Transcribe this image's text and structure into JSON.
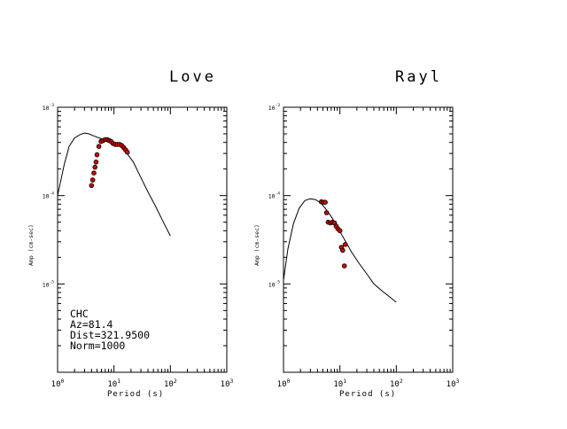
{
  "panels": [
    {
      "title": "Love",
      "xlabel": "Period (s)",
      "ylabel": "Amp (cm-sec)",
      "info_lines": [
        "CHC",
        "Az=81.4",
        "Dist=321.9500",
        "Norm=1000"
      ]
    },
    {
      "title": "Rayl",
      "xlabel": "Period (s)",
      "ylabel": "Amp (cm-sec)",
      "info_lines": []
    }
  ],
  "chart_data": [
    {
      "type": "scatter",
      "title": "Love",
      "xlabel": "Period (s)",
      "ylabel": "Amp (cm-sec)",
      "xscale": "log",
      "yscale": "log",
      "xlim": [
        1,
        1000
      ],
      "ylim": [
        1e-06,
        0.001
      ],
      "x_ticks": [
        "10^0",
        "10^1",
        "10^2",
        "10^3"
      ],
      "y_ticks": [
        "10^-3",
        "10^-4",
        "10^-5"
      ],
      "colors": {
        "curve": "#000000",
        "points": "#cc0000",
        "point_edge": "#000000"
      },
      "series": [
        {
          "kind": "line",
          "points": [
            [
              1.0,
              0.0001
            ],
            [
              1.3,
              0.00022
            ],
            [
              1.6,
              0.00036
            ],
            [
              2.0,
              0.00045
            ],
            [
              2.5,
              0.00049
            ],
            [
              3.0,
              0.00051
            ],
            [
              3.6,
              0.0005
            ],
            [
              4.5,
              0.00047
            ],
            [
              6.0,
              0.00044
            ],
            [
              8.0,
              0.00042
            ],
            [
              10.0,
              0.0004
            ],
            [
              13.0,
              0.00036
            ],
            [
              17.0,
              0.0003
            ],
            [
              22.0,
              0.00024
            ],
            [
              30.0,
              0.00016
            ],
            [
              40.0,
              0.00011
            ],
            [
              55.0,
              7.5e-05
            ],
            [
              75.0,
              5e-05
            ],
            [
              100.0,
              3.5e-05
            ]
          ]
        },
        {
          "kind": "scatter",
          "points": [
            [
              4.0,
              0.00013
            ],
            [
              4.2,
              0.00015
            ],
            [
              4.4,
              0.00018
            ],
            [
              4.6,
              0.00021
            ],
            [
              4.8,
              0.00024
            ],
            [
              5.0,
              0.00029
            ],
            [
              5.4,
              0.00036
            ],
            [
              5.9,
              0.00041
            ],
            [
              6.4,
              0.00042
            ],
            [
              7.0,
              0.00043
            ],
            [
              7.6,
              0.00043
            ],
            [
              8.2,
              0.00042
            ],
            [
              8.9,
              0.00041
            ],
            [
              9.6,
              0.00039
            ],
            [
              10.5,
              0.00038
            ],
            [
              11.5,
              0.00038
            ],
            [
              12.5,
              0.00038
            ],
            [
              13.6,
              0.00037
            ],
            [
              14.8,
              0.00035
            ],
            [
              16.0,
              0.00033
            ],
            [
              17.2,
              0.00031
            ]
          ]
        }
      ]
    },
    {
      "type": "scatter",
      "title": "Rayl",
      "xlabel": "Period (s)",
      "ylabel": "Amp (cm-sec)",
      "xscale": "log",
      "yscale": "log",
      "xlim": [
        1,
        1000
      ],
      "ylim": [
        1e-06,
        0.001
      ],
      "x_ticks": [
        "10^0",
        "10^1",
        "10^2",
        "10^3"
      ],
      "y_ticks": [
        "10^-3",
        "10^-4",
        "10^-5"
      ],
      "colors": {
        "curve": "#000000",
        "points": "#cc0000",
        "point_edge": "#000000"
      },
      "series": [
        {
          "kind": "line",
          "points": [
            [
              1.0,
              1.1e-05
            ],
            [
              1.2,
              2.5e-05
            ],
            [
              1.5,
              4.8e-05
            ],
            [
              1.9,
              7.2e-05
            ],
            [
              2.4,
              8.8e-05
            ],
            [
              3.0,
              9.2e-05
            ],
            [
              3.7,
              9e-05
            ],
            [
              4.5,
              8.3e-05
            ],
            [
              5.5,
              7.2e-05
            ],
            [
              7.0,
              5.8e-05
            ],
            [
              9.0,
              4.4e-05
            ],
            [
              12.0,
              3.2e-05
            ],
            [
              16.0,
              2.3e-05
            ],
            [
              22.0,
              1.7e-05
            ],
            [
              30.0,
              1.3e-05
            ],
            [
              40.0,
              1e-05
            ],
            [
              55.0,
              8.4e-06
            ],
            [
              75.0,
              7.2e-06
            ],
            [
              100.0,
              6.2e-06
            ]
          ]
        },
        {
          "kind": "scatter",
          "points": [
            [
              4.7,
              8.5e-05
            ],
            [
              5.0,
              8.4e-05
            ],
            [
              5.5,
              8.4e-05
            ],
            [
              5.8,
              6.4e-05
            ],
            [
              6.2,
              5e-05
            ],
            [
              6.8,
              4.9e-05
            ],
            [
              7.4,
              5e-05
            ],
            [
              8.0,
              4.9e-05
            ],
            [
              8.6,
              4.5e-05
            ],
            [
              9.2,
              4.2e-05
            ],
            [
              10.0,
              4e-05
            ],
            [
              10.6,
              2.6e-05
            ],
            [
              11.2,
              2.4e-05
            ],
            [
              12.0,
              1.6e-05
            ],
            [
              12.5,
              2.8e-05
            ]
          ]
        }
      ]
    }
  ]
}
